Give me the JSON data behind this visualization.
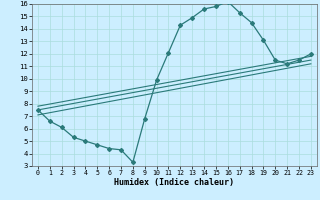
{
  "xlabel": "Humidex (Indice chaleur)",
  "bg_color": "#cceeff",
  "line_color": "#2a7a7a",
  "grid_color": "#aadddd",
  "xlim": [
    -0.5,
    23.5
  ],
  "ylim": [
    3,
    16
  ],
  "xticks": [
    0,
    1,
    2,
    3,
    4,
    5,
    6,
    7,
    8,
    9,
    10,
    11,
    12,
    13,
    14,
    15,
    16,
    17,
    18,
    19,
    20,
    21,
    22,
    23
  ],
  "yticks": [
    3,
    4,
    5,
    6,
    7,
    8,
    9,
    10,
    11,
    12,
    13,
    14,
    15,
    16
  ],
  "curve_x": [
    0,
    1,
    2,
    3,
    4,
    5,
    6,
    7,
    8,
    9,
    10,
    11,
    12,
    13,
    14,
    15,
    16,
    17,
    18,
    19,
    20,
    21,
    22,
    23
  ],
  "curve_y": [
    7.5,
    6.6,
    6.1,
    5.3,
    5.0,
    4.7,
    4.4,
    4.3,
    3.3,
    6.8,
    9.9,
    12.1,
    14.3,
    14.9,
    15.6,
    15.8,
    16.2,
    15.3,
    14.5,
    13.1,
    11.5,
    11.2,
    11.5,
    12.0
  ],
  "line1_x": [
    0,
    23
  ],
  "line1_y": [
    7.8,
    11.8
  ],
  "line2_x": [
    0,
    23
  ],
  "line2_y": [
    7.5,
    11.5
  ],
  "line3_x": [
    0,
    23
  ],
  "line3_y": [
    7.1,
    11.2
  ]
}
